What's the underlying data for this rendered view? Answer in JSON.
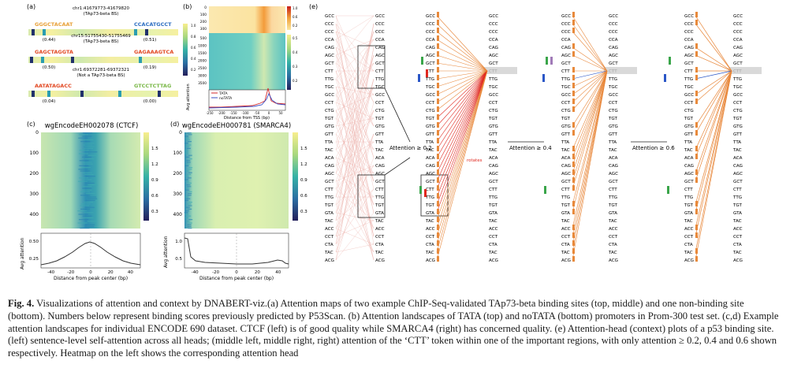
{
  "panel_a": {
    "label": "(a)",
    "sites": [
      {
        "loc": "chr1:41679773-41679820",
        "desc": "(TAp73-beta BS)",
        "left_seq": "GGGCTACAAT",
        "left_score": "(0.44)",
        "right_seq": "CCACATGCCT",
        "right_score": "(0.51)"
      },
      {
        "loc": "chr15:51755430-51755469",
        "desc": "(TAp73-beta BS)",
        "left_seq": "GAGCTAGGTA",
        "left_score": "(0.50)",
        "right_seq": "GAGAAAGTCA",
        "right_score": "(0.19)"
      },
      {
        "loc": "chr1:69372281-69372321",
        "desc": "(Not a TAp73-beta BS)",
        "left_seq": "AATATAGACC",
        "left_score": "(0.04)",
        "right_seq": "GTCCTCTTAG",
        "right_score": "(0.00)"
      }
    ],
    "colorbar_ticks": [
      "1.0",
      "0.8",
      "0.6",
      "0.4",
      "0.2"
    ]
  },
  "panel_b": {
    "label": "(b)",
    "yticks_top": [
      "0",
      "100",
      "200",
      "300"
    ],
    "yticks_bottom": [
      "500",
      "1000",
      "1500",
      "2000",
      "2500",
      "3000",
      "3500"
    ],
    "colorbar_ticks_top": [
      "1.0",
      "0.6",
      "0.2"
    ],
    "colorbar_ticks_bottom": [
      "0.5",
      "0.4",
      "0.3",
      "0.2"
    ],
    "ylabel": "Avg attention",
    "xlabel": "Distance from TSS (bp)",
    "xticks": [
      "-250",
      "-200",
      "-150",
      "-100",
      "-50",
      "0",
      "50"
    ],
    "legend": [
      "TATA",
      "noTATA"
    ]
  },
  "panel_c": {
    "label": "(c)",
    "title": "wgEncodeEH002078 (CTCF)",
    "yticks": [
      "0",
      "100",
      "200",
      "300",
      "400"
    ],
    "colorbar_ticks": [
      "1.5",
      "1.2",
      "0.9",
      "0.6",
      "0.3"
    ],
    "line_yticks": [
      "0.25",
      "0.50"
    ],
    "ylabel": "Avg attention",
    "xticks": [
      "-40",
      "-20",
      "0",
      "20",
      "40"
    ],
    "xlabel": "Distance from peak center (bp)"
  },
  "panel_d": {
    "label": "(d)",
    "title": "wgEncodeEH000781 (SMARCA4)",
    "yticks": [
      "0",
      "100",
      "200",
      "300",
      "400"
    ],
    "colorbar_ticks": [
      "1.5",
      "1.2",
      "0.9",
      "0.6",
      "0.3"
    ],
    "line_yticks": [
      "0.5",
      "1.0"
    ],
    "ylabel": "Avg attention",
    "xticks": [
      "-40",
      "-20",
      "0",
      "20",
      "40"
    ],
    "xlabel": "Distance from peak center (bp)"
  },
  "panel_e": {
    "label": "(e)",
    "tokens": [
      "GCC",
      "CCC",
      "CCC",
      "CCA",
      "CAG",
      "AGC",
      "GCT",
      "CTT",
      "TTG",
      "TGC",
      "GCC",
      "CCT",
      "CTG",
      "TGT",
      "GTG",
      "GTT",
      "TTA",
      "TAC",
      "ACA",
      "CAG",
      "AGC",
      "GCT",
      "CTT",
      "TTG",
      "TGT",
      "GTA",
      "TAC",
      "ACC",
      "CCT",
      "CTA",
      "TAC",
      "ACG"
    ],
    "arrows": [
      "Attention ≥ 0.2",
      "Attention ≥ 0.4",
      "Attention ≥ 0.6"
    ],
    "rotates_label": "rotates",
    "focus_token": "CTT"
  },
  "caption": {
    "fig_label": "Fig. 4.",
    "text": " Visualizations of attention and context by DNABERT-viz.(a) Attention maps of two example ChIP-Seq-validated TAp73-beta binding sites (top, middle) and one non-binding site (bottom). Numbers below represent binding scores previously predicted by P53Scan. (b) Attention landscapes of TATA (top) and noTATA (bottom) promoters in Prom-300 test set. (c,d) Example attention landscapes for individual ENCODE 690 dataset. CTCF (left) is of good quality while SMARCA4 (right) has concerned quality. (e) Attention-head (context) plots of a p53 binding site. (left) sentence-level self-attention across all heads; (middle left, middle right, right) attention of the ‘CTT’ token within one of the important regions, with only attention ≥ 0.2, 0.4 and 0.6 shown respectively. Heatmap on the left shows the corresponding attention head"
  },
  "colors": {
    "teal": "#2a9db0",
    "yellow": "#f2e36b",
    "orange": "#e8873a",
    "red": "#e0281f",
    "navy": "#21316b",
    "blue": "#2b57c7",
    "green": "#3aa54a"
  }
}
